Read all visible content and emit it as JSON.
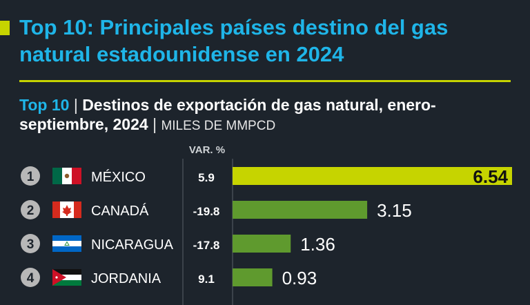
{
  "header": {
    "title": "Top 10: Principales países destino del gas natural estadounidense en 2024",
    "subtitle_lead": "Top 10",
    "subtitle_sep": "|",
    "subtitle_main": "Destinos de exportación de gas natural, enero-septiembre, 2024",
    "subtitle_unit": "MILES DE MMPCD"
  },
  "var_header": "VAR. %",
  "colors": {
    "background": "#1d242c",
    "title": "#1fb5e8",
    "accent": "#c6d400",
    "bar_top": "#c6d400",
    "bar": "#5f9a2e",
    "rank_circle": "#b8b8b8"
  },
  "chart_data": {
    "type": "bar",
    "orientation": "horizontal",
    "title": "Destinos de exportación de gas natural, enero-septiembre, 2024",
    "unit": "MILES DE MMPCD",
    "categories": [
      "MÉXICO",
      "CANADÁ",
      "NICARAGUA",
      "JORDANIA"
    ],
    "ranks": [
      "1",
      "2",
      "3",
      "4"
    ],
    "values": [
      6.54,
      3.15,
      1.36,
      0.93
    ],
    "value_labels": [
      "6.54",
      "3.15",
      "1.36",
      "0.93"
    ],
    "var_pct": [
      "5.9",
      "-19.8",
      "-17.8",
      "9.1"
    ],
    "flags": [
      "mexico-flag-icon",
      "canada-flag-icon",
      "nicaragua-flag-icon",
      "jordan-flag-icon"
    ],
    "xlim": [
      0,
      6.54
    ]
  }
}
